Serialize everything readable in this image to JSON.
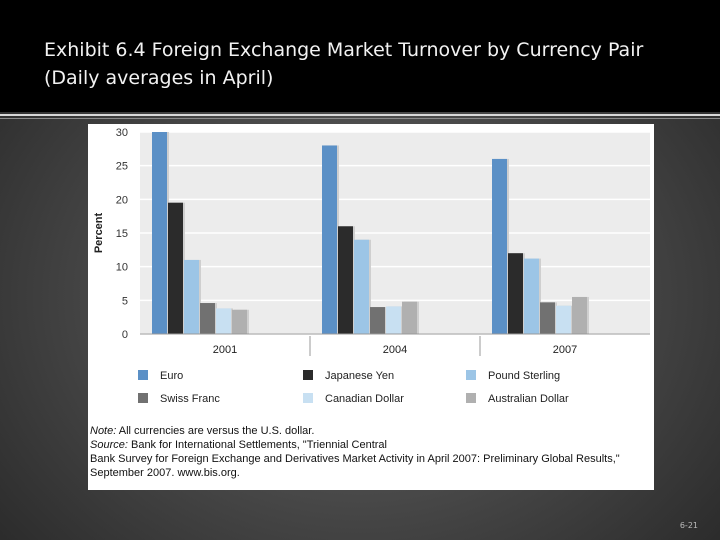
{
  "slide": {
    "title": "Exhibit 6.4  Foreign Exchange Market Turnover by Currency Pair (Daily averages in April)",
    "page_number": "6-21"
  },
  "note": {
    "note_label": "Note:",
    "note_text": "All currencies are versus the U.S. dollar.",
    "source_label": "Source:",
    "source_text": "Bank for International Settlements, \"Triennial Central",
    "source_line2": "Bank Survey for Foreign Exchange and Derivatives Market Activity in April 2007: Preliminary Global Results,\"",
    "source_line3": "September 2007. www.bis.org."
  },
  "colors": {
    "Euro": "#5b90c6",
    "Japanese Yen": "#2b2b2b",
    "Pound Sterling": "#9cc5e6",
    "Swiss Franc": "#717171",
    "Canadian Dollar": "#c8e0f2",
    "Australian Dollar": "#b0b0b0"
  },
  "chart_data": {
    "type": "bar",
    "categories": [
      "2001",
      "2004",
      "2007"
    ],
    "series": [
      {
        "name": "Euro",
        "values": [
          30,
          28,
          26
        ]
      },
      {
        "name": "Japanese Yen",
        "values": [
          19.5,
          16,
          12
        ]
      },
      {
        "name": "Pound Sterling",
        "values": [
          11,
          14,
          11.2
        ]
      },
      {
        "name": "Swiss Franc",
        "values": [
          4.6,
          4,
          4.7
        ]
      },
      {
        "name": "Canadian Dollar",
        "values": [
          3.8,
          4.1,
          4.2
        ]
      },
      {
        "name": "Australian Dollar",
        "values": [
          3.6,
          4.8,
          5.5
        ]
      }
    ],
    "ylabel": "Percent",
    "ylim": [
      0,
      30
    ],
    "yticks": [
      0,
      5,
      10,
      15,
      20,
      25,
      30
    ],
    "grid": true,
    "legend_position": "bottom"
  }
}
